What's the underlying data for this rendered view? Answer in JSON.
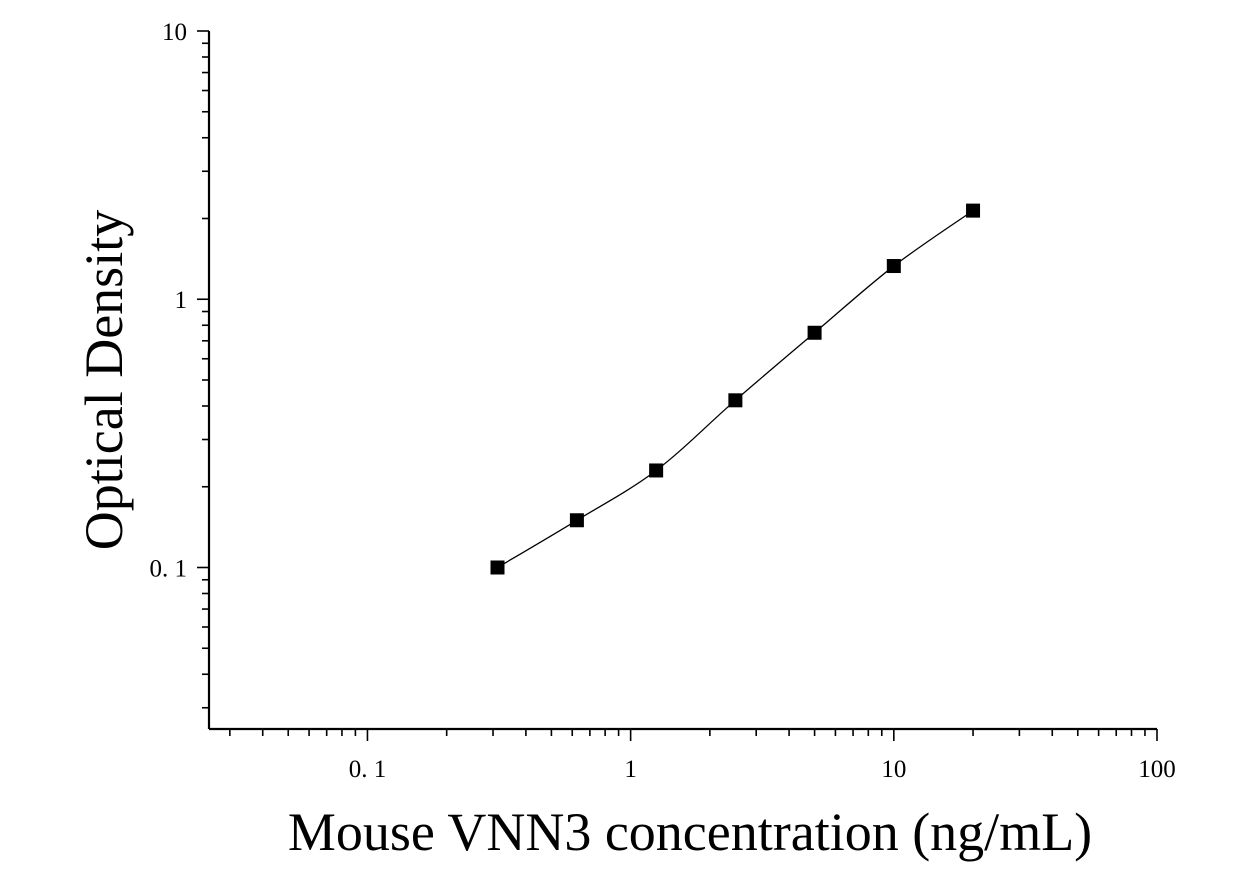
{
  "chart_data": {
    "type": "scatter",
    "title": "",
    "xlabel": "Mouse VNN3 concentration (ng/mL)",
    "ylabel": "Optical Density",
    "x_scale": "log",
    "y_scale": "log",
    "xlim": [
      0.025,
      100
    ],
    "ylim": [
      0.025,
      10
    ],
    "x_tick_labels": [
      {
        "value": 0.1,
        "label": "0. 1"
      },
      {
        "value": 1,
        "label": "1"
      },
      {
        "value": 10,
        "label": "10"
      },
      {
        "value": 100,
        "label": "100"
      }
    ],
    "y_tick_labels": [
      {
        "value": 0.1,
        "label": "0. 1"
      },
      {
        "value": 1,
        "label": "1"
      },
      {
        "value": 10,
        "label": "10"
      }
    ],
    "grid": false,
    "legend": "none",
    "fit_curve": true,
    "marker": "square",
    "color": "#000000",
    "series": [
      {
        "x": [
          0.312,
          0.625,
          1.25,
          2.5,
          5,
          10,
          20
        ],
        "y": [
          0.1,
          0.15,
          0.23,
          0.42,
          0.75,
          1.33,
          2.14
        ]
      }
    ]
  }
}
